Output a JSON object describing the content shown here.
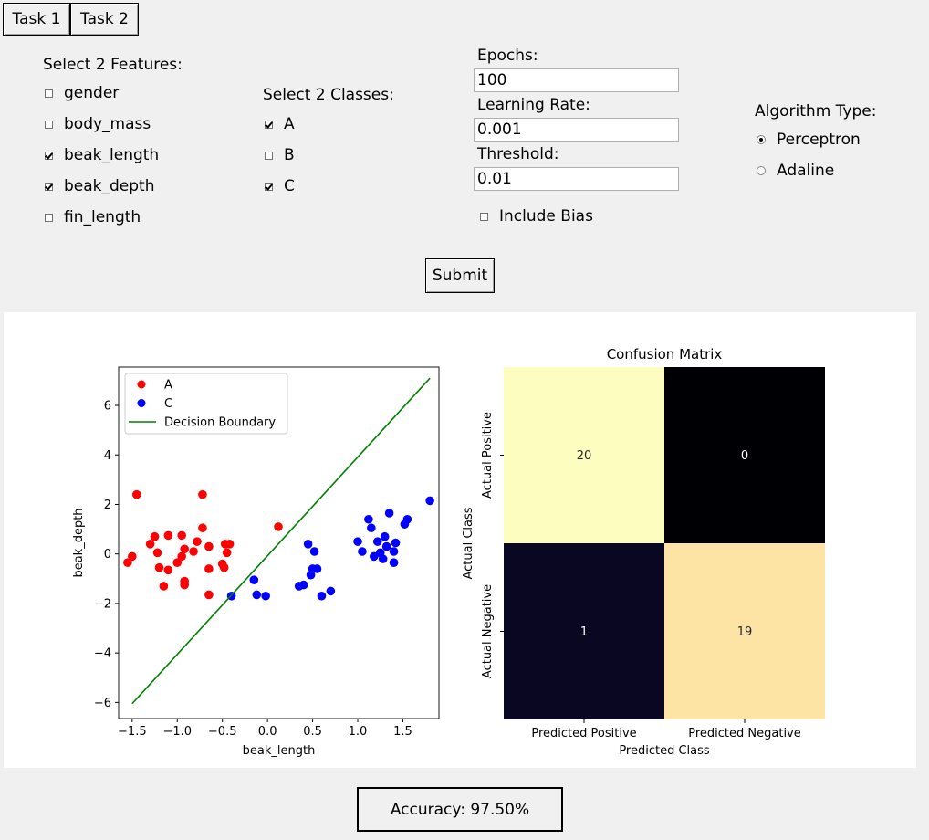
{
  "tabs": [
    "Task 1",
    "Task 2"
  ],
  "features": {
    "title": "Select 2 Features:",
    "items": [
      {
        "label": "gender",
        "checked": false
      },
      {
        "label": "body_mass",
        "checked": false
      },
      {
        "label": "beak_length",
        "checked": true
      },
      {
        "label": "beak_depth",
        "checked": true
      },
      {
        "label": "fin_length",
        "checked": false
      }
    ]
  },
  "classes": {
    "title": "Select 2 Classes:",
    "items": [
      {
        "label": "A",
        "checked": true
      },
      {
        "label": "B",
        "checked": false
      },
      {
        "label": "C",
        "checked": true
      }
    ]
  },
  "params": {
    "epochs_label": "Epochs:",
    "epochs_value": "100",
    "lr_label": "Learning Rate:",
    "lr_value": "0.001",
    "threshold_label": "Threshold:",
    "threshold_value": "0.01",
    "bias_label": "Include Bias",
    "bias_checked": false
  },
  "algorithm": {
    "title": "Algorithm Type:",
    "options": [
      {
        "label": "Perceptron",
        "selected": true
      },
      {
        "label": "Adaline",
        "selected": false
      }
    ]
  },
  "submit_label": "Submit",
  "accuracy_text": "Accuracy: 97.50%",
  "chart_data": [
    {
      "type": "scatter",
      "xlabel": "beak_length",
      "ylabel": "beak_depth",
      "xlim": [
        -1.65,
        1.9
      ],
      "ylim": [
        -6.65,
        7.55
      ],
      "xticks": [
        -1.5,
        -1.0,
        -0.5,
        0.0,
        0.5,
        1.0,
        1.5
      ],
      "xtick_labels": [
        "−1.5",
        "−1.0",
        "−0.5",
        "0.0",
        "0.5",
        "1.0",
        "1.5"
      ],
      "yticks": [
        -6,
        -4,
        -2,
        0,
        2,
        4,
        6
      ],
      "ytick_labels": [
        "−6",
        "−4",
        "−2",
        "0",
        "2",
        "4",
        "6"
      ],
      "legend_position": "top-left",
      "series": [
        {
          "name": "A",
          "kind": "points",
          "color": "#ff0000",
          "points": [
            [
              -1.55,
              -0.35
            ],
            [
              -1.5,
              -0.1
            ],
            [
              -1.45,
              2.4
            ],
            [
              -1.3,
              0.4
            ],
            [
              -1.25,
              0.7
            ],
            [
              -1.22,
              0.05
            ],
            [
              -1.2,
              -0.55
            ],
            [
              -1.15,
              -1.3
            ],
            [
              -1.1,
              0.75
            ],
            [
              -1.1,
              -0.65
            ],
            [
              -1.0,
              -0.35
            ],
            [
              -0.95,
              0.75
            ],
            [
              -0.95,
              -0.1
            ],
            [
              -0.92,
              0.2
            ],
            [
              -0.92,
              -1.1
            ],
            [
              -0.92,
              -1.25
            ],
            [
              -0.82,
              0.1
            ],
            [
              -0.78,
              0.5
            ],
            [
              -0.72,
              2.4
            ],
            [
              -0.72,
              1.05
            ],
            [
              -0.65,
              0.3
            ],
            [
              -0.65,
              -0.6
            ],
            [
              -0.65,
              -1.65
            ],
            [
              -0.5,
              -0.4
            ],
            [
              -0.48,
              -0.55
            ],
            [
              -0.47,
              0.4
            ],
            [
              -0.45,
              0.05
            ],
            [
              -0.42,
              0.4
            ],
            [
              0.12,
              1.1
            ]
          ]
        },
        {
          "name": "C",
          "kind": "points",
          "color": "#0000ff",
          "points": [
            [
              -0.4,
              -1.7
            ],
            [
              -0.15,
              -1.05
            ],
            [
              -0.12,
              -1.65
            ],
            [
              -0.02,
              -1.7
            ],
            [
              0.35,
              -1.3
            ],
            [
              0.4,
              -1.25
            ],
            [
              0.45,
              0.4
            ],
            [
              0.48,
              -0.85
            ],
            [
              0.5,
              -0.6
            ],
            [
              0.52,
              0.1
            ],
            [
              0.55,
              -0.6
            ],
            [
              0.6,
              -1.7
            ],
            [
              0.7,
              -1.5
            ],
            [
              1.0,
              0.5
            ],
            [
              1.05,
              0.1
            ],
            [
              1.12,
              1.4
            ],
            [
              1.15,
              1.05
            ],
            [
              1.18,
              -0.1
            ],
            [
              1.22,
              0.5
            ],
            [
              1.25,
              0.05
            ],
            [
              1.28,
              -0.2
            ],
            [
              1.3,
              0.7
            ],
            [
              1.32,
              0.3
            ],
            [
              1.35,
              1.65
            ],
            [
              1.4,
              0.1
            ],
            [
              1.42,
              0.45
            ],
            [
              1.4,
              -0.35
            ],
            [
              1.52,
              1.2
            ],
            [
              1.55,
              1.4
            ],
            [
              1.8,
              2.15
            ]
          ]
        },
        {
          "name": "Decision Boundary",
          "kind": "line",
          "color": "#008000",
          "points": [
            [
              -1.5,
              -6.05
            ],
            [
              1.8,
              7.1
            ]
          ]
        }
      ]
    },
    {
      "type": "heatmap",
      "title": "Confusion Matrix",
      "xlabel": "Predicted Class",
      "ylabel": "Actual Class",
      "x_categories": [
        "Predicted Positive",
        "Predicted Negative"
      ],
      "y_categories": [
        "Actual Positive",
        "Actual Negative"
      ],
      "values": [
        [
          20,
          0
        ],
        [
          1,
          19
        ]
      ],
      "cell_colors": [
        [
          "#fcfdbf",
          "#000004"
        ],
        [
          "#0a0722",
          "#fde4a5"
        ]
      ],
      "text_colors": [
        [
          "#262626",
          "#ffffff"
        ],
        [
          "#ffffff",
          "#262626"
        ]
      ]
    }
  ]
}
